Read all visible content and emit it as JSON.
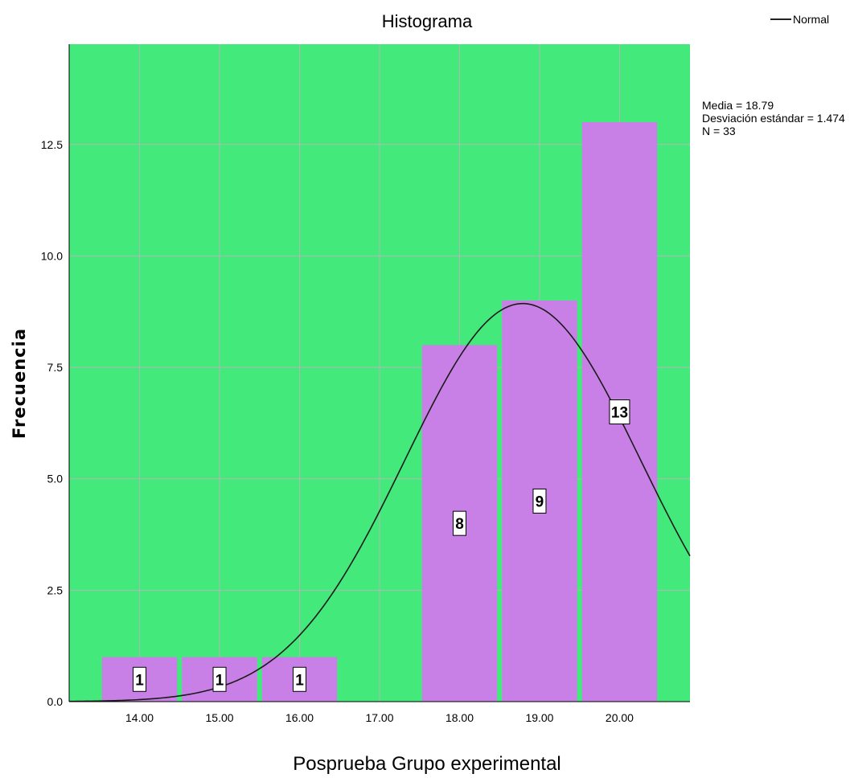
{
  "chart_data": {
    "type": "bar",
    "title": "Histograma",
    "xlabel": "Posprueba  Grupo experimental",
    "ylabel": "Frecuencia",
    "categories": [
      "14.00",
      "15.00",
      "16.00",
      "17.00",
      "18.00",
      "19.00",
      "20.00"
    ],
    "values": [
      1,
      1,
      1,
      0,
      8,
      9,
      13
    ],
    "data_labels": [
      "1",
      "1",
      "1",
      "",
      "8",
      "9",
      "13"
    ],
    "y_ticks": [
      "0.0",
      "2.5",
      "5.0",
      "7.5",
      "10.0",
      "12.5"
    ],
    "x_range": [
      13.12,
      20.88
    ],
    "ylim": [
      0,
      14.75
    ],
    "grid": true,
    "legend": {
      "position": "top-right",
      "entries": [
        "Normal"
      ]
    },
    "normal_curve": {
      "mean": 18.79,
      "sd": 1.474,
      "n": 33,
      "bin_width": 1
    },
    "stats_text": [
      "Media = 18.79",
      "Desviación estándar = 1.474",
      "N = 33"
    ],
    "colors": {
      "plot_background": "#44e97c",
      "bar_fill": "#c980e6",
      "grid": "#b5b5b5",
      "curve": "#1a1a1a"
    }
  }
}
